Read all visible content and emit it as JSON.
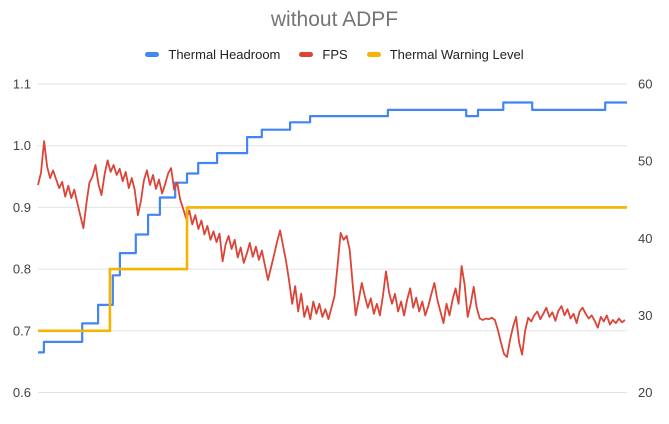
{
  "title": "without ADPF",
  "legend": {
    "items": [
      {
        "label": "Thermal Headroom",
        "color": "#4285f4"
      },
      {
        "label": "FPS",
        "color": "#db4437"
      },
      {
        "label": "Thermal Warning Level",
        "color": "#f4b400"
      }
    ]
  },
  "colors": {
    "title": "#757575",
    "axis_label": "#424242",
    "legend_text": "#202124",
    "gridline": "#e3e3e3",
    "background": "#ffffff",
    "series_blue": "#4285f4",
    "series_red": "#db4437",
    "series_yellow": "#f4b400"
  },
  "chart_data": {
    "type": "line",
    "title": "without ADPF",
    "grid": true,
    "legend_position": "top",
    "xlabel": "",
    "x_tick_labels_visible": false,
    "left_axis": {
      "range": [
        0.6,
        1.1
      ],
      "ticks": [
        "1.1",
        "1.0",
        "0.9",
        "0.8",
        "0.7",
        "0.6"
      ]
    },
    "right_axis": {
      "range": [
        20,
        60
      ],
      "ticks": [
        "60",
        "50",
        "40",
        "30",
        "20"
      ]
    },
    "series": [
      {
        "name": "Thermal Headroom",
        "axis": "left",
        "color": "#4285f4",
        "shape": "step",
        "width": 2.2,
        "steps": [
          [
            0.0,
            0.665
          ],
          [
            0.01,
            0.682
          ],
          [
            0.075,
            0.712
          ],
          [
            0.102,
            0.742
          ],
          [
            0.127,
            0.79
          ],
          [
            0.139,
            0.826
          ],
          [
            0.166,
            0.856
          ],
          [
            0.187,
            0.888
          ],
          [
            0.207,
            0.916
          ],
          [
            0.233,
            0.94
          ],
          [
            0.253,
            0.955
          ],
          [
            0.272,
            0.972
          ],
          [
            0.304,
            0.988
          ],
          [
            0.355,
            1.014
          ],
          [
            0.38,
            1.026
          ],
          [
            0.428,
            1.038
          ],
          [
            0.462,
            1.048
          ],
          [
            0.594,
            1.058
          ],
          [
            0.727,
            1.048
          ],
          [
            0.747,
            1.058
          ],
          [
            0.79,
            1.07
          ],
          [
            0.839,
            1.058
          ],
          [
            0.963,
            1.07
          ]
        ]
      },
      {
        "name": "FPS",
        "axis": "right",
        "color": "#db4437",
        "shape": "line",
        "width": 1.8,
        "values": [
          46.9,
          48.5,
          52.6,
          49.3,
          47.8,
          48.8,
          47.6,
          46.5,
          47.3,
          45.4,
          46.8,
          45.2,
          46.3,
          44.6,
          42.9,
          41.3,
          44.5,
          47.2,
          48.0,
          49.5,
          47.0,
          45.6,
          48.3,
          50.1,
          48.6,
          49.5,
          48.2,
          49.0,
          47.4,
          48.6,
          46.5,
          47.8,
          46.2,
          43.0,
          44.8,
          47.5,
          48.8,
          46.9,
          48.2,
          46.4,
          47.6,
          45.8,
          47.0,
          48.4,
          49.1,
          46.3,
          47.2,
          45.0,
          43.8,
          42.5,
          43.6,
          41.8,
          43.0,
          41.2,
          42.3,
          40.5,
          41.6,
          39.8,
          40.9,
          39.5,
          40.6,
          37.0,
          39.2,
          40.3,
          38.6,
          39.8,
          37.5,
          38.8,
          36.8,
          38.0,
          39.4,
          37.6,
          38.9,
          37.2,
          38.4,
          36.5,
          34.6,
          36.2,
          37.8,
          39.5,
          41.0,
          39.0,
          37.0,
          34.5,
          31.5,
          33.8,
          30.5,
          32.8,
          29.8,
          31.2,
          29.5,
          31.8,
          30.2,
          31.5,
          29.8,
          30.8,
          29.5,
          31.0,
          32.5,
          36.5,
          40.7,
          39.8,
          40.3,
          38.5,
          34.0,
          30.0,
          32.0,
          34.2,
          32.5,
          31.0,
          32.2,
          30.2,
          31.5,
          30.0,
          32.5,
          35.7,
          33.0,
          31.5,
          32.8,
          30.5,
          31.8,
          30.0,
          32.0,
          33.5,
          31.0,
          32.3,
          30.5,
          31.8,
          30.0,
          31.2,
          32.8,
          34.2,
          32.0,
          30.5,
          29.0,
          31.5,
          30.0,
          32.0,
          33.5,
          31.5,
          36.4,
          34.0,
          29.8,
          31.5,
          33.7,
          31.0,
          29.6,
          29.4,
          29.6,
          29.5,
          29.7,
          29.4,
          28.1,
          26.5,
          25.0,
          24.6,
          26.8,
          28.5,
          29.8,
          26.5,
          24.9,
          28.0,
          29.7,
          29.2,
          30.0,
          30.5,
          29.5,
          30.2,
          31.0,
          29.8,
          30.4,
          29.3,
          30.6,
          31.2,
          30.0,
          30.8,
          29.6,
          30.2,
          29.0,
          30.5,
          31.0,
          30.2,
          29.6,
          30.0,
          29.3,
          28.4,
          29.8,
          29.2,
          30.0,
          28.8,
          29.4,
          29.0,
          29.6,
          29.1,
          29.4
        ]
      },
      {
        "name": "Thermal Warning Level",
        "axis": "left",
        "color": "#f4b400",
        "shape": "step",
        "width": 2.6,
        "steps": [
          [
            0.0,
            0.7
          ],
          [
            0.122,
            0.8
          ],
          [
            0.253,
            0.9
          ]
        ]
      }
    ]
  }
}
